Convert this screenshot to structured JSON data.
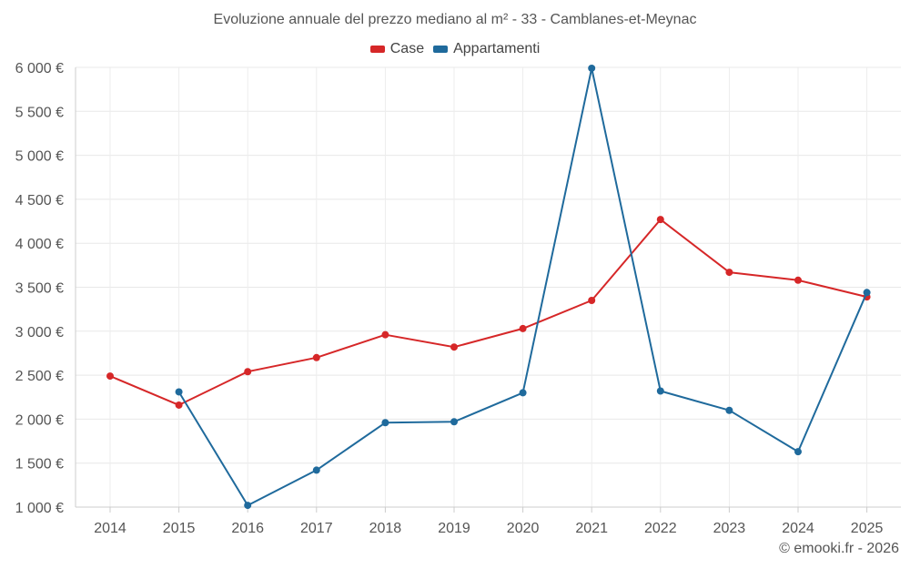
{
  "chart_data": {
    "type": "line",
    "title": "Evoluzione annuale del prezzo mediano al m² - 33 - Camblanes-et-Meynac",
    "xlabel": "",
    "ylabel": "",
    "categories": [
      "2014",
      "2015",
      "2016",
      "2017",
      "2018",
      "2019",
      "2020",
      "2021",
      "2022",
      "2023",
      "2024",
      "2025"
    ],
    "ylim": [
      1000,
      6000
    ],
    "yticks": [
      1000,
      1500,
      2000,
      2500,
      3000,
      3500,
      4000,
      4500,
      5000,
      5500,
      6000
    ],
    "ytick_labels": [
      "1 000 €",
      "1 500 €",
      "2 000 €",
      "2 500 €",
      "3 000 €",
      "3 500 €",
      "4 000 €",
      "4 500 €",
      "5 000 €",
      "5 500 €",
      "6 000 €"
    ],
    "grid": true,
    "legend_position": "top-center",
    "series": [
      {
        "name": "Case",
        "color": "#d62728",
        "values": [
          2490,
          2160,
          2540,
          2700,
          2960,
          2820,
          3030,
          3350,
          4270,
          3670,
          3580,
          3390
        ]
      },
      {
        "name": "Appartamenti",
        "color": "#1f6a9c",
        "values": [
          null,
          2310,
          1020,
          1420,
          1960,
          1970,
          2300,
          5990,
          2320,
          2100,
          1630,
          3440
        ]
      }
    ]
  },
  "credit": "© emooki.fr - 2026"
}
